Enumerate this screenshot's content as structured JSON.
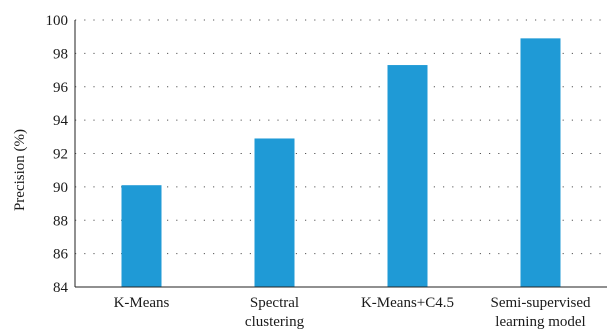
{
  "chart_data": {
    "type": "bar",
    "title": "",
    "xlabel": "",
    "ylabel": "Precision (%)",
    "categories": [
      [
        "K-Means"
      ],
      [
        "Spectral",
        "clustering"
      ],
      [
        "K-Means+C4.5"
      ],
      [
        "Semi-supervised",
        "learning model"
      ]
    ],
    "values": [
      90.1,
      92.9,
      97.3,
      98.9
    ],
    "ylim": [
      84,
      100
    ],
    "yticks": [
      84,
      86,
      88,
      90,
      92,
      94,
      96,
      98,
      100
    ],
    "grid": "dotted",
    "bar_color": "#1f9ad6"
  }
}
